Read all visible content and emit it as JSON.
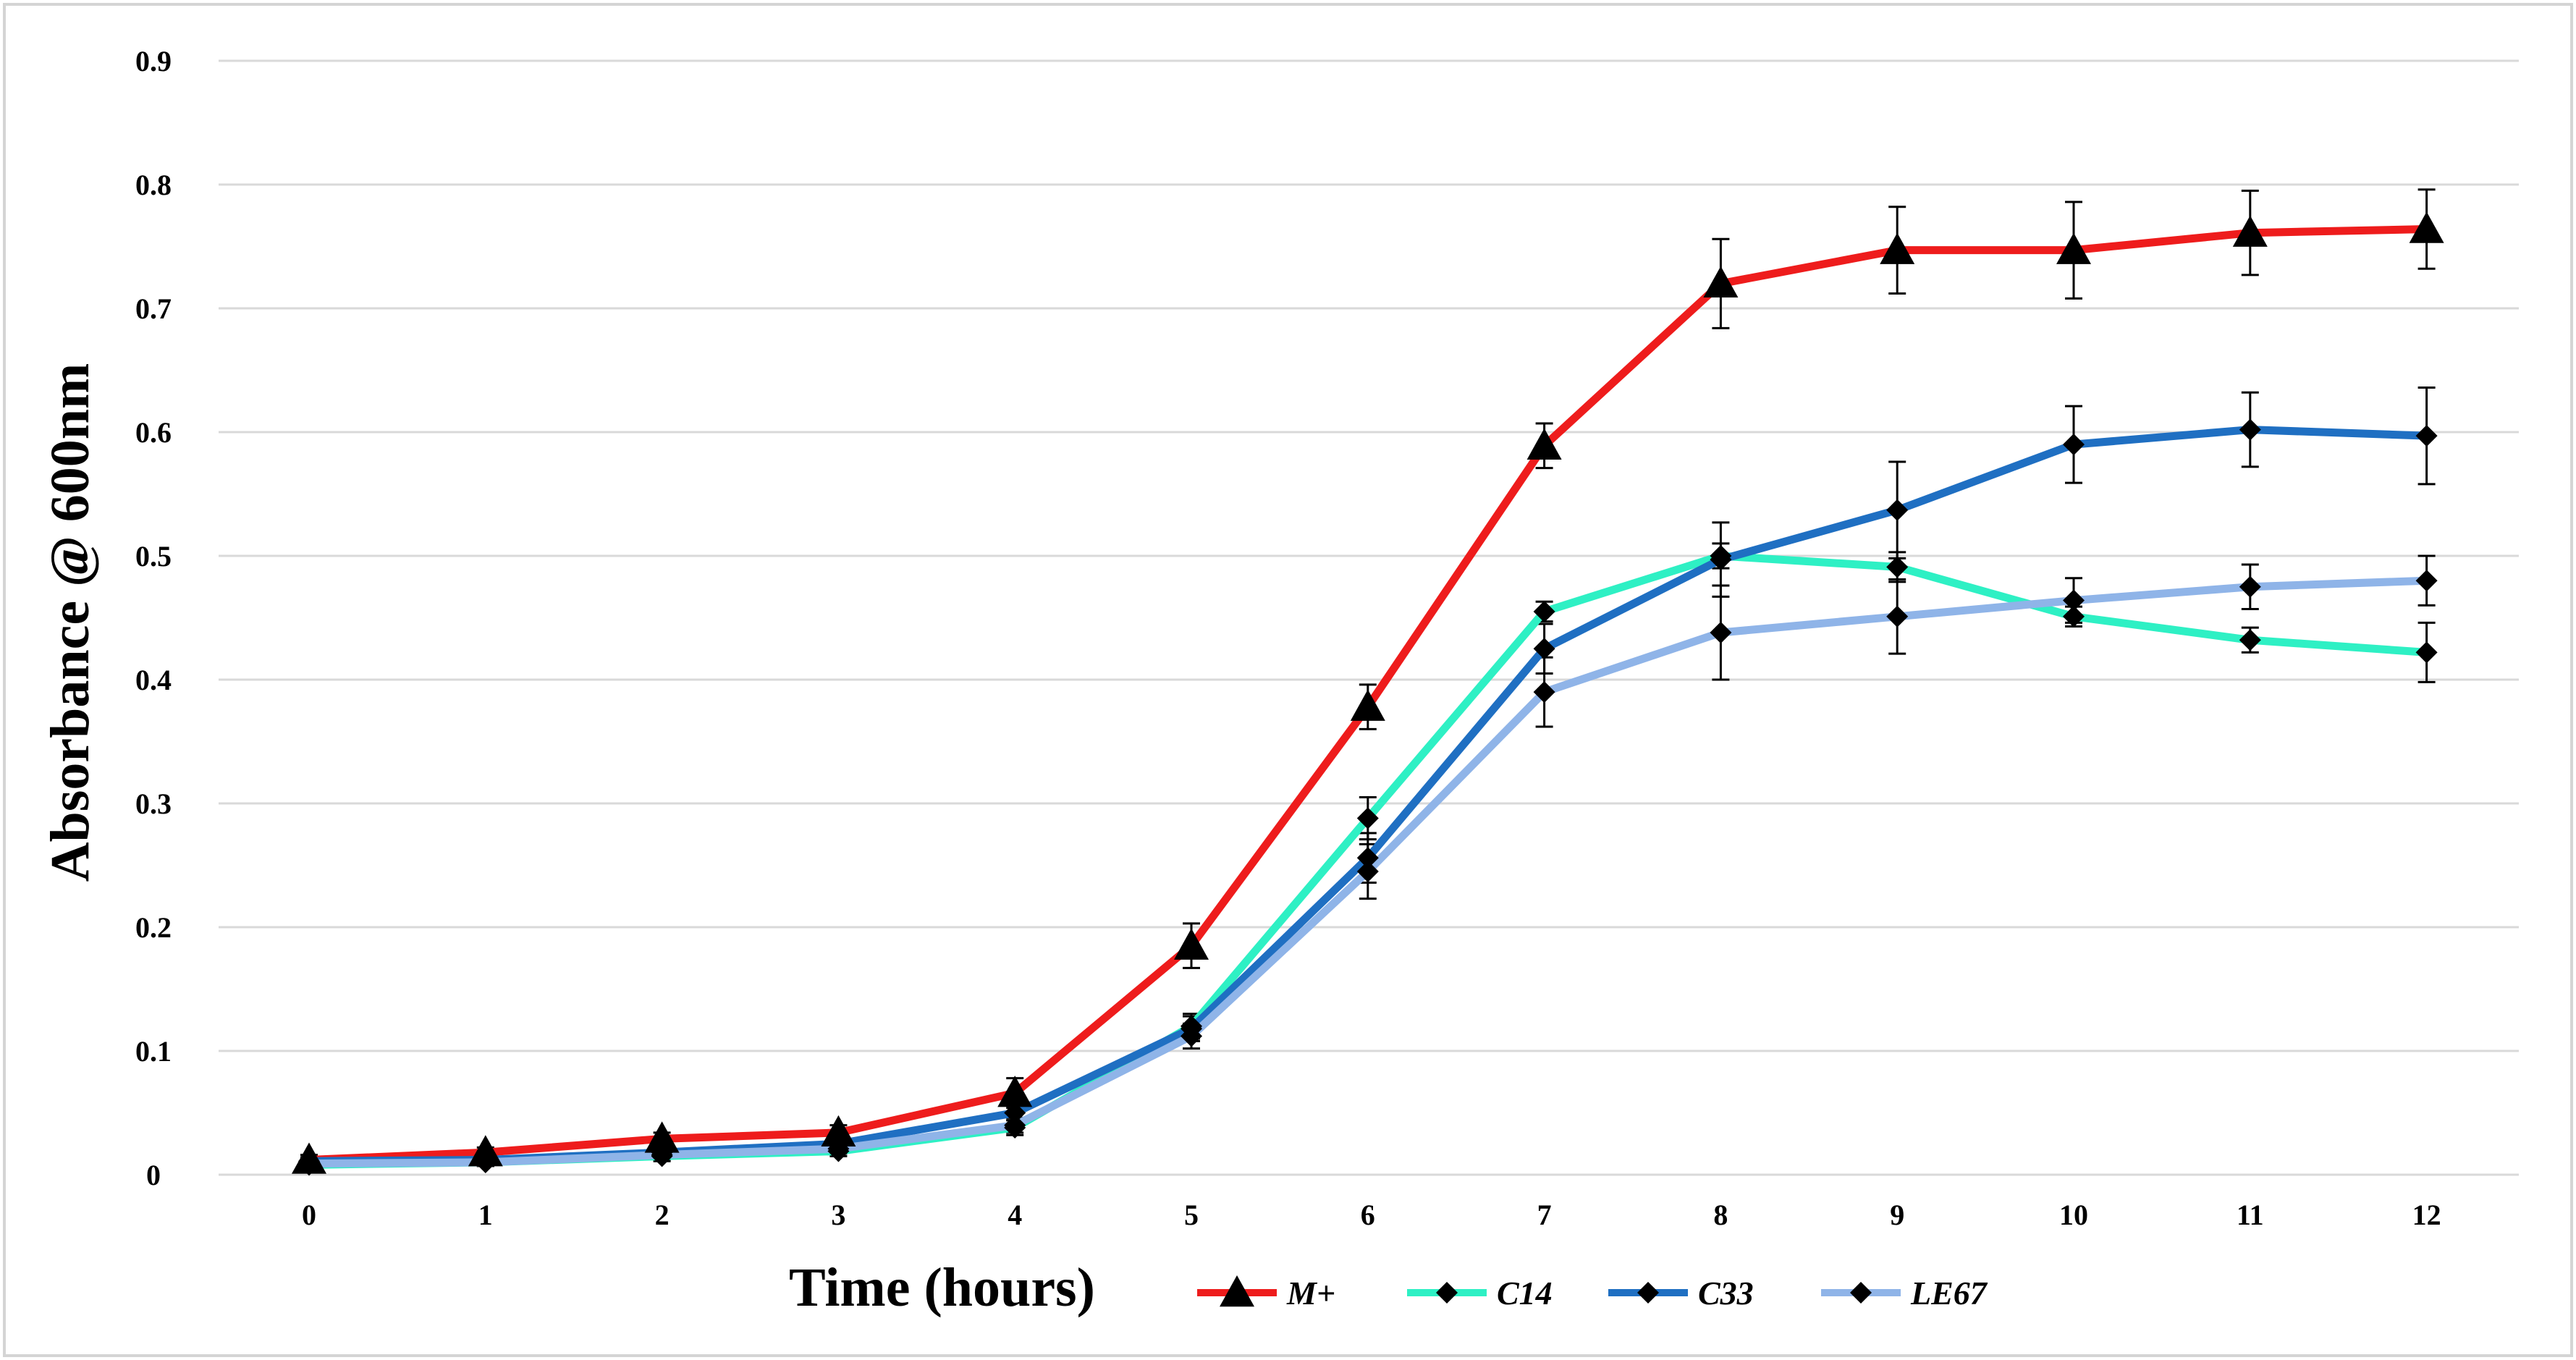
{
  "chart_data": {
    "type": "line",
    "title": "",
    "xlabel": "Time (hours)",
    "ylabel": "Absorbance @ 600nm",
    "x": [
      0,
      1,
      2,
      3,
      4,
      5,
      6,
      7,
      8,
      9,
      10,
      11,
      12
    ],
    "xlim": [
      0,
      12
    ],
    "ylim": [
      0,
      0.9
    ],
    "yticks": [
      "0",
      "0.1",
      "0.2",
      "0.3",
      "0.4",
      "0.5",
      "0.6",
      "0.7",
      "0.8",
      "0.9"
    ],
    "xticks": [
      "0",
      "1",
      "2",
      "3",
      "4",
      "5",
      "6",
      "7",
      "8",
      "9",
      "10",
      "11",
      "12"
    ],
    "grid": "horizontal",
    "legend_position": "bottom",
    "series": [
      {
        "name": "M+",
        "color": "#ee1c1c",
        "marker": "triangle",
        "values": [
          0.012,
          0.018,
          0.029,
          0.034,
          0.066,
          0.185,
          0.378,
          0.589,
          0.72,
          0.747,
          0.747,
          0.761,
          0.764
        ],
        "errors": [
          0.004,
          0.004,
          0.005,
          0.006,
          0.012,
          0.018,
          0.018,
          0.018,
          0.036,
          0.035,
          0.039,
          0.034,
          0.032
        ]
      },
      {
        "name": "C14",
        "color": "#2ef0c4",
        "marker": "diamond",
        "values": [
          0.008,
          0.01,
          0.015,
          0.019,
          0.038,
          0.12,
          0.288,
          0.455,
          0.5,
          0.491,
          0.451,
          0.432,
          0.422
        ],
        "errors": [
          0.003,
          0.003,
          0.004,
          0.004,
          0.006,
          0.01,
          0.017,
          0.008,
          0.01,
          0.012,
          0.008,
          0.01,
          0.024
        ]
      },
      {
        "name": "C33",
        "color": "#1f6fc2",
        "marker": "diamond",
        "values": [
          0.011,
          0.012,
          0.018,
          0.025,
          0.05,
          0.118,
          0.256,
          0.425,
          0.497,
          0.537,
          0.59,
          0.602,
          0.597
        ],
        "errors": [
          0.003,
          0.003,
          0.004,
          0.004,
          0.006,
          0.01,
          0.02,
          0.02,
          0.03,
          0.039,
          0.031,
          0.03,
          0.039
        ]
      },
      {
        "name": "LE67",
        "color": "#8fb4e8",
        "marker": "diamond",
        "values": [
          0.009,
          0.01,
          0.016,
          0.021,
          0.04,
          0.112,
          0.245,
          0.39,
          0.438,
          0.451,
          0.464,
          0.475,
          0.48
        ],
        "errors": [
          0.003,
          0.003,
          0.004,
          0.004,
          0.006,
          0.01,
          0.022,
          0.028,
          0.038,
          0.03,
          0.018,
          0.018,
          0.02
        ]
      }
    ]
  }
}
